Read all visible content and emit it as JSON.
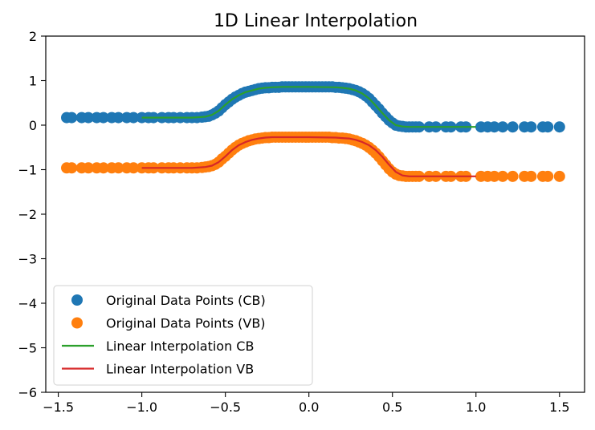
{
  "chart_data": {
    "type": "line",
    "title": "1D Linear Interpolation",
    "xlabel": "",
    "ylabel": "",
    "xlim": [
      -1.575,
      1.65
    ],
    "ylim": [
      -6,
      2
    ],
    "xticks": [
      -1.5,
      -1.0,
      -0.5,
      0.0,
      0.5,
      1.0,
      1.5
    ],
    "xtick_labels": [
      "−1.5",
      "−1.0",
      "−0.5",
      "0.0",
      "0.5",
      "1.0",
      "1.5"
    ],
    "yticks": [
      2,
      1,
      0,
      -1,
      -2,
      -3,
      -4,
      -5,
      -6
    ],
    "ytick_labels": [
      "2",
      "1",
      "0",
      "−1",
      "−2",
      "−3",
      "−4",
      "−5",
      "−6"
    ],
    "grid": false,
    "legend_position": "lower-left",
    "series": [
      {
        "name": "Original Data Points (CB)",
        "kind": "scatter",
        "color": "#1f77b4",
        "x": [
          -1.45,
          -1.42,
          -1.36,
          -1.32,
          -1.27,
          -1.23,
          -1.18,
          -1.14,
          -1.09,
          -1.05,
          -1.0,
          -0.96,
          -0.93,
          -0.88,
          -0.84,
          -0.81,
          -0.77,
          -0.73,
          -0.7,
          -0.67,
          -0.64,
          -0.62,
          -0.6,
          -0.58,
          -0.56,
          -0.54,
          -0.52,
          -0.5,
          -0.48,
          -0.46,
          -0.44,
          -0.42,
          -0.4,
          -0.38,
          -0.36,
          -0.34,
          -0.32,
          -0.3,
          -0.28,
          -0.26,
          -0.24,
          -0.22,
          -0.2,
          -0.18,
          -0.16,
          -0.14,
          -0.12,
          -0.1,
          -0.08,
          -0.06,
          -0.04,
          -0.02,
          0.0,
          0.02,
          0.04,
          0.06,
          0.08,
          0.1,
          0.12,
          0.14,
          0.16,
          0.18,
          0.2,
          0.22,
          0.24,
          0.26,
          0.28,
          0.3,
          0.32,
          0.34,
          0.36,
          0.38,
          0.4,
          0.42,
          0.44,
          0.46,
          0.48,
          0.5,
          0.52,
          0.54,
          0.56,
          0.58,
          0.6,
          0.62,
          0.64,
          0.66,
          0.72,
          0.76,
          0.82,
          0.85,
          0.91,
          0.94,
          1.03,
          1.07,
          1.11,
          1.16,
          1.22,
          1.29,
          1.33,
          1.4,
          1.43,
          1.5
        ],
        "y": [
          0.17,
          0.17,
          0.17,
          0.17,
          0.17,
          0.17,
          0.17,
          0.17,
          0.17,
          0.17,
          0.17,
          0.17,
          0.17,
          0.17,
          0.17,
          0.17,
          0.17,
          0.17,
          0.17,
          0.17,
          0.18,
          0.19,
          0.2,
          0.23,
          0.27,
          0.32,
          0.39,
          0.46,
          0.52,
          0.58,
          0.63,
          0.67,
          0.71,
          0.74,
          0.76,
          0.78,
          0.8,
          0.82,
          0.83,
          0.84,
          0.84,
          0.85,
          0.85,
          0.85,
          0.86,
          0.86,
          0.86,
          0.86,
          0.86,
          0.86,
          0.86,
          0.86,
          0.86,
          0.86,
          0.86,
          0.86,
          0.86,
          0.86,
          0.86,
          0.86,
          0.85,
          0.85,
          0.84,
          0.83,
          0.82,
          0.8,
          0.78,
          0.75,
          0.71,
          0.66,
          0.6,
          0.52,
          0.44,
          0.36,
          0.27,
          0.19,
          0.11,
          0.05,
          0.0,
          -0.02,
          -0.03,
          -0.04,
          -0.04,
          -0.04,
          -0.04,
          -0.04,
          -0.04,
          -0.04,
          -0.04,
          -0.04,
          -0.04,
          -0.04,
          -0.04,
          -0.04,
          -0.04,
          -0.04,
          -0.04,
          -0.04,
          -0.04,
          -0.04,
          -0.04,
          -0.04
        ]
      },
      {
        "name": "Original Data Points (VB)",
        "kind": "scatter",
        "color": "#ff7f0e",
        "x": [
          -1.45,
          -1.42,
          -1.36,
          -1.32,
          -1.27,
          -1.23,
          -1.18,
          -1.14,
          -1.09,
          -1.05,
          -1.0,
          -0.96,
          -0.93,
          -0.88,
          -0.84,
          -0.81,
          -0.77,
          -0.73,
          -0.7,
          -0.67,
          -0.64,
          -0.62,
          -0.6,
          -0.58,
          -0.56,
          -0.54,
          -0.52,
          -0.5,
          -0.48,
          -0.46,
          -0.44,
          -0.42,
          -0.4,
          -0.38,
          -0.36,
          -0.34,
          -0.32,
          -0.3,
          -0.28,
          -0.26,
          -0.24,
          -0.22,
          -0.2,
          -0.18,
          -0.16,
          -0.14,
          -0.12,
          -0.1,
          -0.08,
          -0.06,
          -0.04,
          -0.02,
          0.0,
          0.02,
          0.04,
          0.06,
          0.08,
          0.1,
          0.12,
          0.14,
          0.16,
          0.18,
          0.2,
          0.22,
          0.24,
          0.26,
          0.28,
          0.3,
          0.32,
          0.34,
          0.36,
          0.38,
          0.4,
          0.42,
          0.44,
          0.46,
          0.48,
          0.5,
          0.52,
          0.54,
          0.56,
          0.58,
          0.6,
          0.62,
          0.64,
          0.66,
          0.72,
          0.76,
          0.82,
          0.85,
          0.91,
          0.94,
          1.03,
          1.07,
          1.11,
          1.16,
          1.22,
          1.29,
          1.33,
          1.4,
          1.43,
          1.5
        ],
        "y": [
          -0.96,
          -0.96,
          -0.96,
          -0.96,
          -0.96,
          -0.96,
          -0.96,
          -0.96,
          -0.96,
          -0.96,
          -0.96,
          -0.96,
          -0.96,
          -0.96,
          -0.96,
          -0.96,
          -0.96,
          -0.96,
          -0.96,
          -0.96,
          -0.95,
          -0.94,
          -0.93,
          -0.91,
          -0.88,
          -0.83,
          -0.76,
          -0.7,
          -0.63,
          -0.56,
          -0.5,
          -0.45,
          -0.41,
          -0.38,
          -0.35,
          -0.33,
          -0.31,
          -0.3,
          -0.29,
          -0.28,
          -0.28,
          -0.27,
          -0.27,
          -0.27,
          -0.27,
          -0.27,
          -0.27,
          -0.27,
          -0.27,
          -0.27,
          -0.27,
          -0.27,
          -0.27,
          -0.27,
          -0.27,
          -0.27,
          -0.27,
          -0.27,
          -0.27,
          -0.28,
          -0.28,
          -0.29,
          -0.29,
          -0.3,
          -0.31,
          -0.33,
          -0.35,
          -0.38,
          -0.41,
          -0.45,
          -0.5,
          -0.56,
          -0.63,
          -0.71,
          -0.8,
          -0.89,
          -0.98,
          -1.05,
          -1.1,
          -1.13,
          -1.14,
          -1.15,
          -1.15,
          -1.15,
          -1.15,
          -1.15,
          -1.15,
          -1.15,
          -1.15,
          -1.15,
          -1.15,
          -1.15,
          -1.15,
          -1.15,
          -1.15,
          -1.15,
          -1.15,
          -1.15,
          -1.15,
          -1.15,
          -1.15,
          -1.15
        ]
      },
      {
        "name": "Linear Interpolation CB",
        "kind": "line",
        "color": "#2ca02c",
        "x": [
          -1.0,
          -0.7,
          -0.62,
          -0.58,
          -0.54,
          -0.5,
          -0.46,
          -0.42,
          -0.38,
          -0.34,
          -0.3,
          -0.26,
          -0.22,
          -0.16,
          0.0,
          0.16,
          0.2,
          0.24,
          0.28,
          0.32,
          0.36,
          0.4,
          0.44,
          0.48,
          0.52,
          0.56,
          0.6,
          0.7,
          1.0
        ],
        "y": [
          0.17,
          0.17,
          0.19,
          0.23,
          0.32,
          0.46,
          0.58,
          0.67,
          0.74,
          0.78,
          0.82,
          0.84,
          0.85,
          0.86,
          0.86,
          0.85,
          0.84,
          0.82,
          0.78,
          0.71,
          0.6,
          0.44,
          0.27,
          0.11,
          0.0,
          -0.03,
          -0.04,
          -0.04,
          -0.04
        ]
      },
      {
        "name": "Linear Interpolation VB",
        "kind": "line",
        "color": "#d62728",
        "x": [
          -1.0,
          -0.7,
          -0.62,
          -0.58,
          -0.54,
          -0.5,
          -0.46,
          -0.42,
          -0.38,
          -0.34,
          -0.3,
          -0.26,
          -0.22,
          -0.16,
          0.0,
          0.16,
          0.2,
          0.24,
          0.28,
          0.32,
          0.36,
          0.4,
          0.44,
          0.48,
          0.52,
          0.56,
          0.6,
          0.7,
          1.0
        ],
        "y": [
          -0.96,
          -0.96,
          -0.94,
          -0.91,
          -0.83,
          -0.7,
          -0.56,
          -0.45,
          -0.38,
          -0.33,
          -0.3,
          -0.28,
          -0.27,
          -0.27,
          -0.27,
          -0.28,
          -0.29,
          -0.3,
          -0.33,
          -0.38,
          -0.45,
          -0.56,
          -0.71,
          -0.89,
          -1.05,
          -1.13,
          -1.15,
          -1.15,
          -1.15
        ]
      }
    ]
  }
}
